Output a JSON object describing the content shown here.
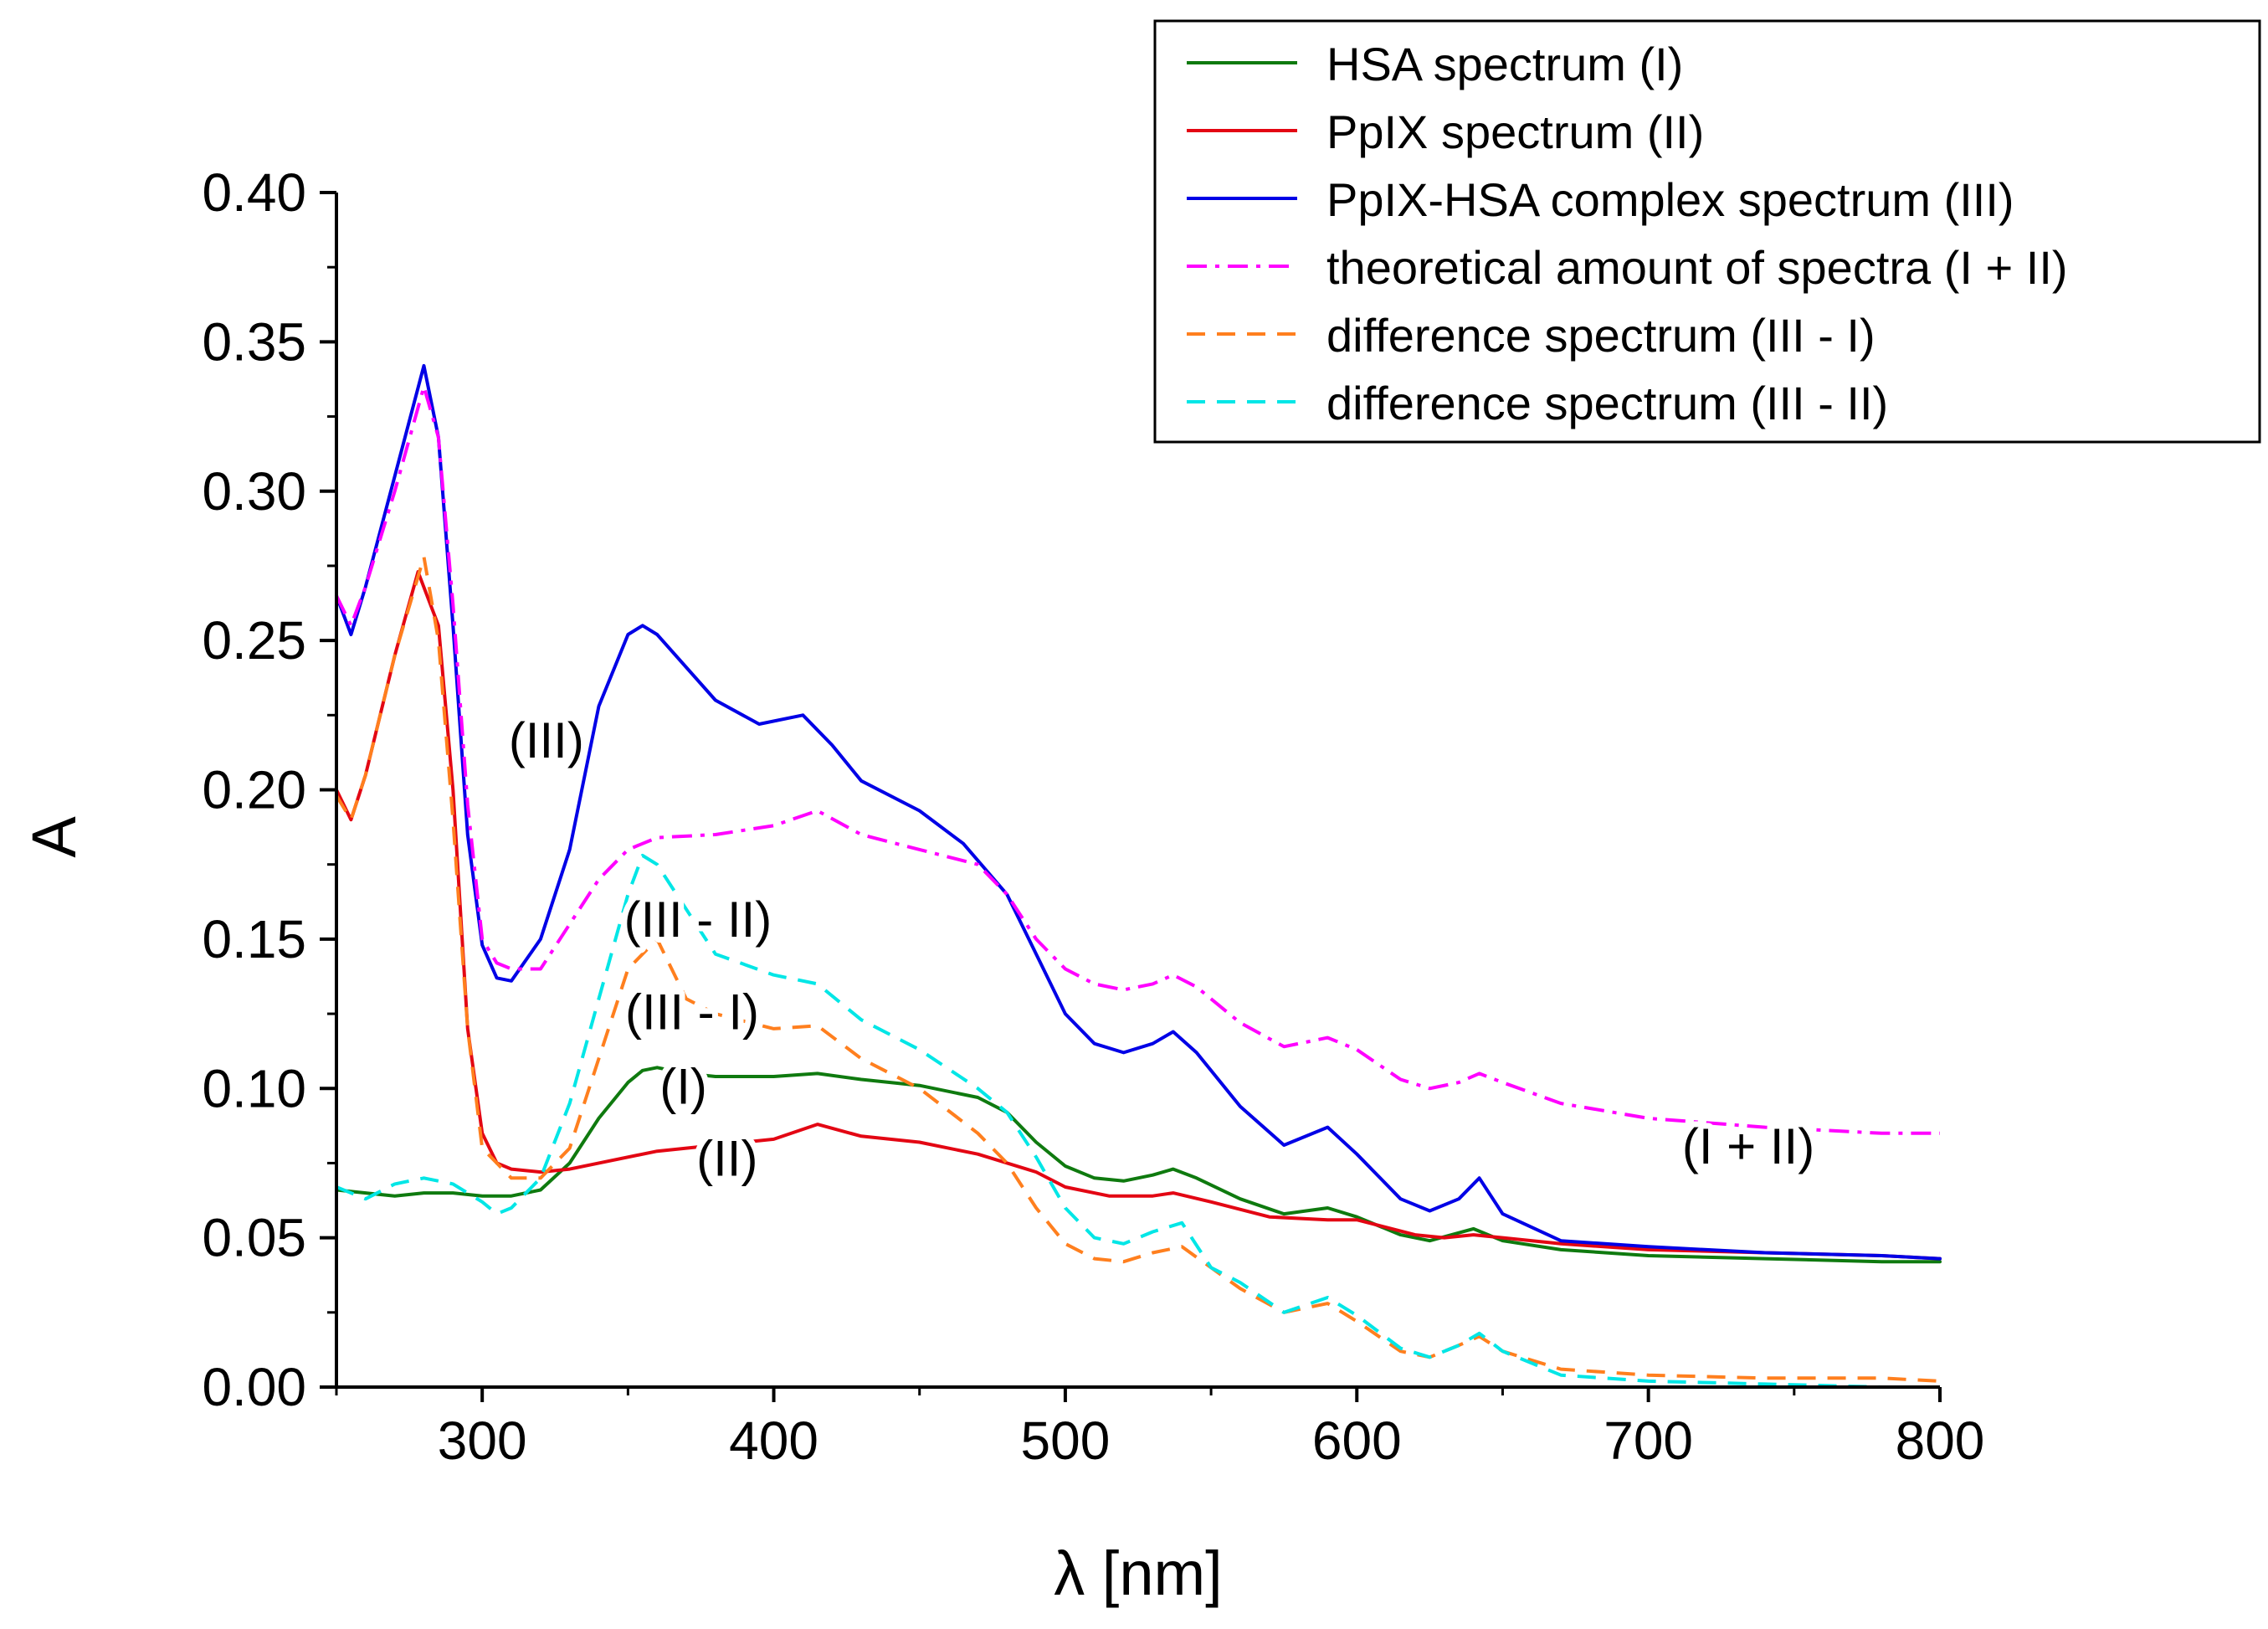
{
  "chart_data": {
    "type": "line",
    "title": "",
    "xlabel": "λ [nm]",
    "ylabel": "A",
    "xlim": [
      250,
      800
    ],
    "ylim": [
      0,
      0.4
    ],
    "xticks": [
      300,
      400,
      500,
      600,
      700,
      800
    ],
    "yticks": [
      0.0,
      0.05,
      0.1,
      0.15,
      0.2,
      0.25,
      0.3,
      0.35,
      0.4
    ],
    "grid": false,
    "legend_position": "top-right",
    "series": [
      {
        "name": "HSA spectrum (I)",
        "color": "#0f7a0f",
        "dash": "solid",
        "x": [
          250,
          270,
          280,
          290,
          300,
          310,
          320,
          330,
          340,
          350,
          355,
          360,
          370,
          380,
          400,
          415,
          430,
          450,
          470,
          480,
          490,
          500,
          510,
          520,
          530,
          537,
          545,
          560,
          575,
          590,
          600,
          615,
          625,
          640,
          650,
          670,
          700,
          740,
          780,
          800
        ],
        "y": [
          0.066,
          0.064,
          0.065,
          0.065,
          0.064,
          0.064,
          0.066,
          0.075,
          0.09,
          0.102,
          0.106,
          0.107,
          0.105,
          0.104,
          0.104,
          0.105,
          0.103,
          0.101,
          0.097,
          0.092,
          0.082,
          0.074,
          0.07,
          0.069,
          0.071,
          0.073,
          0.07,
          0.063,
          0.058,
          0.06,
          0.057,
          0.051,
          0.049,
          0.053,
          0.049,
          0.046,
          0.044,
          0.043,
          0.042,
          0.042
        ]
      },
      {
        "name": "PpIX spectrum (II)",
        "color": "#e30613",
        "dash": "solid",
        "x": [
          250,
          255,
          260,
          270,
          278,
          285,
          290,
          295,
          300,
          305,
          310,
          320,
          330,
          340,
          360,
          380,
          400,
          415,
          430,
          450,
          470,
          490,
          500,
          515,
          530,
          537,
          550,
          570,
          590,
          600,
          620,
          630,
          640,
          650,
          670,
          700,
          740,
          780,
          800
        ],
        "y": [
          0.2,
          0.19,
          0.205,
          0.245,
          0.273,
          0.255,
          0.2,
          0.12,
          0.085,
          0.075,
          0.073,
          0.072,
          0.073,
          0.075,
          0.079,
          0.081,
          0.083,
          0.088,
          0.084,
          0.082,
          0.078,
          0.072,
          0.067,
          0.064,
          0.064,
          0.065,
          0.062,
          0.057,
          0.056,
          0.056,
          0.051,
          0.05,
          0.051,
          0.05,
          0.048,
          0.046,
          0.045,
          0.044,
          0.043
        ]
      },
      {
        "name": "PpIX-HSA complex spectrum (III)",
        "color": "#0000e6",
        "dash": "solid",
        "x": [
          250,
          255,
          260,
          270,
          280,
          285,
          290,
          295,
          300,
          305,
          310,
          320,
          330,
          340,
          350,
          355,
          360,
          380,
          395,
          410,
          420,
          430,
          450,
          465,
          480,
          490,
          500,
          510,
          520,
          530,
          537,
          545,
          560,
          575,
          590,
          600,
          615,
          625,
          635,
          642,
          650,
          670,
          700,
          740,
          780,
          800
        ],
        "y": [
          0.265,
          0.252,
          0.268,
          0.305,
          0.342,
          0.318,
          0.255,
          0.185,
          0.148,
          0.137,
          0.136,
          0.15,
          0.18,
          0.228,
          0.252,
          0.255,
          0.252,
          0.23,
          0.222,
          0.225,
          0.215,
          0.203,
          0.193,
          0.182,
          0.165,
          0.145,
          0.125,
          0.115,
          0.112,
          0.115,
          0.119,
          0.112,
          0.094,
          0.081,
          0.087,
          0.078,
          0.063,
          0.059,
          0.063,
          0.07,
          0.058,
          0.049,
          0.047,
          0.045,
          0.044,
          0.043
        ]
      },
      {
        "name": "theoretical amount of spectra (I + II)",
        "color": "#ff00ff",
        "dash": "dashdot",
        "x": [
          250,
          255,
          260,
          270,
          280,
          285,
          290,
          295,
          300,
          305,
          310,
          320,
          330,
          340,
          350,
          360,
          380,
          400,
          415,
          430,
          450,
          470,
          480,
          490,
          500,
          510,
          520,
          530,
          537,
          545,
          560,
          575,
          590,
          600,
          615,
          625,
          635,
          642,
          650,
          670,
          700,
          740,
          780,
          800
        ],
        "y": [
          0.265,
          0.255,
          0.268,
          0.3,
          0.335,
          0.318,
          0.262,
          0.195,
          0.15,
          0.142,
          0.14,
          0.14,
          0.155,
          0.17,
          0.18,
          0.184,
          0.185,
          0.188,
          0.193,
          0.185,
          0.18,
          0.175,
          0.165,
          0.15,
          0.14,
          0.135,
          0.133,
          0.135,
          0.138,
          0.134,
          0.122,
          0.114,
          0.117,
          0.113,
          0.103,
          0.1,
          0.102,
          0.105,
          0.102,
          0.095,
          0.09,
          0.087,
          0.085,
          0.085
        ]
      },
      {
        "name": "difference spectrum (III - I)",
        "color": "#ff7f1e",
        "dash": "dashed",
        "x": [
          250,
          255,
          260,
          270,
          280,
          285,
          290,
          295,
          300,
          305,
          310,
          320,
          330,
          340,
          350,
          360,
          370,
          380,
          400,
          415,
          430,
          450,
          470,
          480,
          490,
          500,
          510,
          520,
          530,
          540,
          550,
          560,
          575,
          590,
          600,
          615,
          625,
          635,
          642,
          650,
          670,
          700,
          740,
          780,
          800
        ],
        "y": [
          0.198,
          0.19,
          0.205,
          0.245,
          0.278,
          0.25,
          0.19,
          0.12,
          0.08,
          0.075,
          0.07,
          0.07,
          0.08,
          0.11,
          0.14,
          0.15,
          0.13,
          0.125,
          0.12,
          0.121,
          0.11,
          0.1,
          0.085,
          0.075,
          0.06,
          0.048,
          0.043,
          0.042,
          0.045,
          0.047,
          0.04,
          0.033,
          0.025,
          0.028,
          0.022,
          0.012,
          0.01,
          0.014,
          0.017,
          0.012,
          0.006,
          0.004,
          0.003,
          0.003,
          0.002
        ]
      },
      {
        "name": "difference spectrum (III - II)",
        "color": "#00e6e6",
        "dash": "dashed",
        "x": [
          250,
          260,
          270,
          280,
          290,
          300,
          305,
          310,
          320,
          330,
          340,
          350,
          355,
          360,
          370,
          380,
          400,
          415,
          430,
          450,
          470,
          480,
          490,
          500,
          510,
          520,
          530,
          540,
          550,
          560,
          575,
          590,
          600,
          615,
          625,
          635,
          642,
          650,
          670,
          700,
          740,
          780,
          800
        ],
        "y": [
          0.067,
          0.063,
          0.068,
          0.07,
          0.068,
          0.062,
          0.058,
          0.06,
          0.07,
          0.095,
          0.13,
          0.165,
          0.178,
          0.175,
          0.16,
          0.145,
          0.138,
          0.135,
          0.123,
          0.113,
          0.1,
          0.092,
          0.077,
          0.06,
          0.05,
          0.048,
          0.052,
          0.055,
          0.04,
          0.035,
          0.025,
          0.03,
          0.024,
          0.013,
          0.01,
          0.014,
          0.018,
          0.012,
          0.004,
          0.002,
          0.001,
          0.0,
          0.0
        ]
      }
    ],
    "annotations": [
      {
        "text": "(III)",
        "x": 322,
        "y": 0.217,
        "anchor": "middle"
      },
      {
        "text": "(III - II)",
        "x": 374,
        "y": 0.157,
        "anchor": "middle"
      },
      {
        "text": "(III - I)",
        "x": 372,
        "y": 0.126,
        "anchor": "middle"
      },
      {
        "text": "(I)",
        "x": 369,
        "y": 0.101,
        "anchor": "middle"
      },
      {
        "text": "(II)",
        "x": 384,
        "y": 0.077,
        "anchor": "middle"
      },
      {
        "text": "(I + II)",
        "x": 757,
        "y": 0.081,
        "anchor": "end"
      }
    ]
  }
}
